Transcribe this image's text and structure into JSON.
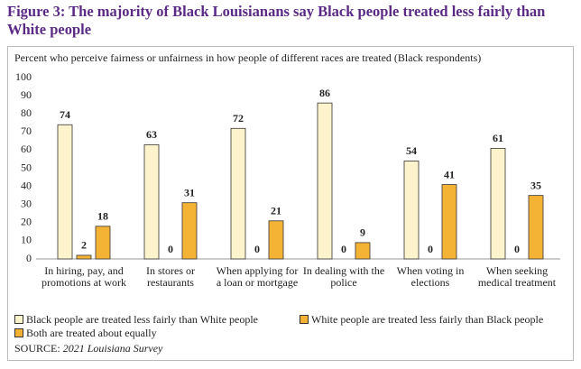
{
  "chart_data": {
    "type": "bar",
    "title": "Figure 3: The majority of Black Louisianans say Black people treated less fairly than White people",
    "subtitle": "Percent who perceive fairness or unfairness in how people of different races are treated (Black respondents)",
    "categories": [
      "In hiring, pay, and promotions at work",
      "In stores or restaurants",
      "When applying for a loan or mortgage",
      "In dealing with the police",
      "When voting in elections",
      "When seeking medical treatment"
    ],
    "series": [
      {
        "name": "Black people are treated less fairly than White people",
        "color": "#fdf3cc",
        "values": [
          74,
          63,
          72,
          86,
          54,
          61
        ]
      },
      {
        "name": "White people are treated less fairly than Black people",
        "color": "#f5b335",
        "values": [
          2,
          0,
          0,
          0,
          0,
          0
        ]
      },
      {
        "name": "Both are treated about equally",
        "color": "#f5b335",
        "values": [
          18,
          31,
          21,
          9,
          41,
          35
        ]
      }
    ],
    "ylim": [
      0,
      100
    ],
    "yticks": [
      0,
      10,
      20,
      30,
      40,
      50,
      60,
      70,
      80,
      90,
      100
    ],
    "source": {
      "label": "SOURCE:",
      "text": "2021 Louisiana Survey"
    }
  }
}
